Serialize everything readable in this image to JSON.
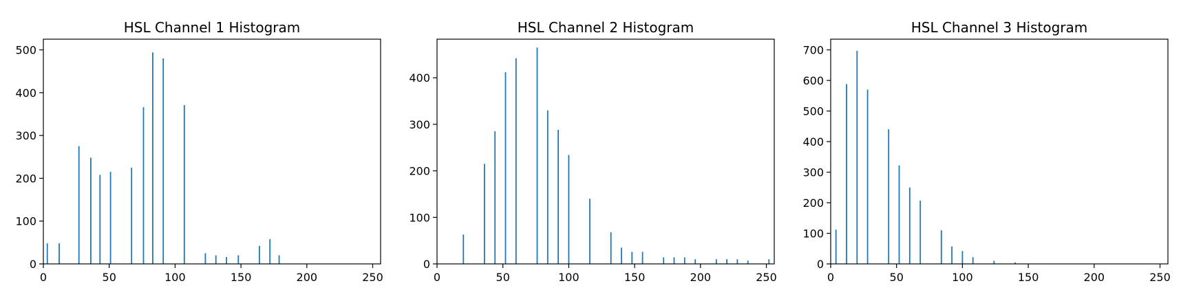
{
  "chart_data": [
    {
      "type": "bar",
      "title": "HSL Channel 1 Histogram",
      "xlabel": "",
      "ylabel": "",
      "xlim": [
        0,
        256
      ],
      "ylim": [
        0,
        525
      ],
      "xticks": [
        "0",
        "50",
        "100",
        "150",
        "200",
        "250"
      ],
      "yticks": [
        "0",
        "100",
        "200",
        "300",
        "400",
        "500"
      ],
      "xtick_values": [
        0,
        50,
        100,
        150,
        200,
        250
      ],
      "ytick_values": [
        0,
        100,
        200,
        300,
        400,
        500
      ],
      "bar_color": "#1f77b4",
      "grid": false,
      "bins": [
        {
          "x": 3,
          "y": 48
        },
        {
          "x": 12,
          "y": 48
        },
        {
          "x": 27,
          "y": 275
        },
        {
          "x": 36,
          "y": 248
        },
        {
          "x": 43,
          "y": 208
        },
        {
          "x": 51,
          "y": 215
        },
        {
          "x": 67,
          "y": 225
        },
        {
          "x": 76,
          "y": 366
        },
        {
          "x": 83,
          "y": 494
        },
        {
          "x": 91,
          "y": 480
        },
        {
          "x": 107,
          "y": 371
        },
        {
          "x": 123,
          "y": 25
        },
        {
          "x": 131,
          "y": 20
        },
        {
          "x": 139,
          "y": 16
        },
        {
          "x": 148,
          "y": 20
        },
        {
          "x": 164,
          "y": 42
        },
        {
          "x": 172,
          "y": 58
        },
        {
          "x": 179,
          "y": 20
        }
      ]
    },
    {
      "type": "bar",
      "title": "HSL Channel 2 Histogram",
      "xlabel": "",
      "ylabel": "",
      "xlim": [
        0,
        256
      ],
      "ylim": [
        0,
        483
      ],
      "xticks": [
        "0",
        "50",
        "100",
        "150",
        "200",
        "250"
      ],
      "yticks": [
        "0",
        "100",
        "200",
        "300",
        "400"
      ],
      "xtick_values": [
        0,
        50,
        100,
        150,
        200,
        250
      ],
      "ytick_values": [
        0,
        100,
        200,
        300,
        400
      ],
      "bar_color": "#1f77b4",
      "grid": false,
      "bins": [
        {
          "x": 20,
          "y": 63
        },
        {
          "x": 36,
          "y": 215
        },
        {
          "x": 44,
          "y": 285
        },
        {
          "x": 52,
          "y": 412
        },
        {
          "x": 60,
          "y": 442
        },
        {
          "x": 76,
          "y": 465
        },
        {
          "x": 84,
          "y": 330
        },
        {
          "x": 92,
          "y": 288
        },
        {
          "x": 100,
          "y": 234
        },
        {
          "x": 116,
          "y": 140
        },
        {
          "x": 132,
          "y": 68
        },
        {
          "x": 140,
          "y": 35
        },
        {
          "x": 148,
          "y": 26
        },
        {
          "x": 156,
          "y": 26
        },
        {
          "x": 172,
          "y": 14
        },
        {
          "x": 180,
          "y": 14
        },
        {
          "x": 188,
          "y": 14
        },
        {
          "x": 196,
          "y": 10
        },
        {
          "x": 212,
          "y": 10
        },
        {
          "x": 220,
          "y": 10
        },
        {
          "x": 228,
          "y": 10
        },
        {
          "x": 236,
          "y": 7
        },
        {
          "x": 252,
          "y": 10
        }
      ]
    },
    {
      "type": "bar",
      "title": "HSL Channel 3 Histogram",
      "xlabel": "",
      "ylabel": "",
      "xlim": [
        0,
        256
      ],
      "ylim": [
        0,
        735
      ],
      "xticks": [
        "0",
        "50",
        "100",
        "150",
        "200",
        "250"
      ],
      "yticks": [
        "0",
        "100",
        "200",
        "300",
        "400",
        "500",
        "600",
        "700"
      ],
      "xtick_values": [
        0,
        50,
        100,
        150,
        200,
        250
      ],
      "ytick_values": [
        0,
        100,
        200,
        300,
        400,
        500,
        600,
        700
      ],
      "bar_color": "#1f77b4",
      "grid": false,
      "bins": [
        {
          "x": 4,
          "y": 112
        },
        {
          "x": 12,
          "y": 588
        },
        {
          "x": 20,
          "y": 697
        },
        {
          "x": 28,
          "y": 570
        },
        {
          "x": 44,
          "y": 440
        },
        {
          "x": 52,
          "y": 322
        },
        {
          "x": 60,
          "y": 250
        },
        {
          "x": 68,
          "y": 207
        },
        {
          "x": 84,
          "y": 110
        },
        {
          "x": 92,
          "y": 57
        },
        {
          "x": 100,
          "y": 42
        },
        {
          "x": 108,
          "y": 22
        },
        {
          "x": 124,
          "y": 10
        },
        {
          "x": 140,
          "y": 5
        }
      ]
    }
  ]
}
